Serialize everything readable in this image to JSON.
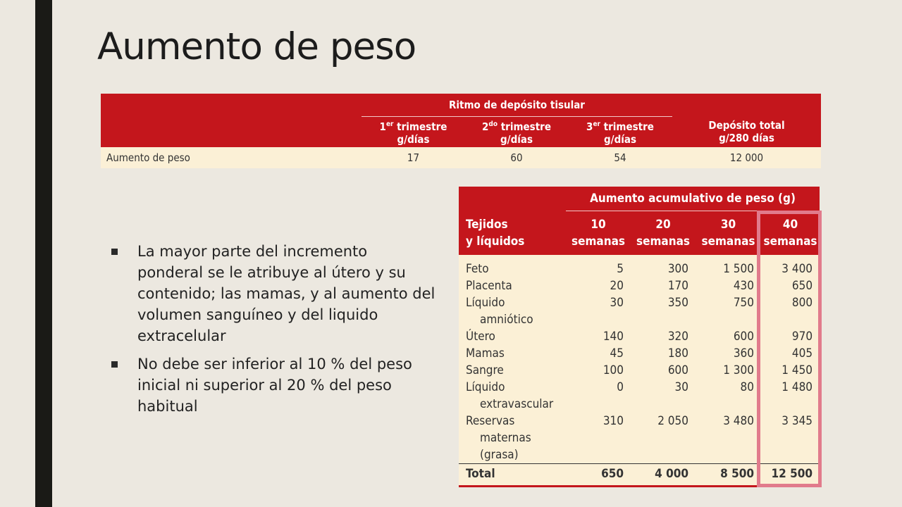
{
  "slide": {
    "title": "Aumento de peso"
  },
  "rate_table": {
    "group_header": "Ritmo de depósito tisular",
    "columns": [
      {
        "ord": "1",
        "sup": "er",
        "label": " trimestre",
        "unit": "g/días"
      },
      {
        "ord": "2",
        "sup": "do",
        "label": " trimestre",
        "unit": "g/días"
      },
      {
        "ord": "3",
        "sup": "er",
        "label": " trimestre",
        "unit": "g/días"
      }
    ],
    "total_header_line1": "Depósito total",
    "total_header_line2": "g/280 días",
    "row": {
      "label": "Aumento de peso",
      "values": [
        "17",
        "60",
        "54",
        "12 000"
      ]
    }
  },
  "bullets": [
    "La mayor parte del incremento ponderal se le atribuye al útero y su contenido; las mamas, y al aumento del volumen sanguíneo y del liquido extracelular",
    "No debe ser inferior al 10 % del peso inicial ni superior al 20 % del peso habitual"
  ],
  "weight_table": {
    "group_header": "Aumento acumulativo de peso (g)",
    "tissue_header_line1": "Tejidos",
    "tissue_header_line2": "y líquidos",
    "columns": [
      {
        "num": "10",
        "unit": "semanas"
      },
      {
        "num": "20",
        "unit": "semanas"
      },
      {
        "num": "30",
        "unit": "semanas"
      },
      {
        "num": "40",
        "unit": "semanas"
      }
    ],
    "rows": [
      {
        "label": "Feto",
        "sub": [
          "",
          ""
        ],
        "values": [
          "5",
          "300",
          "1 500",
          "3 400"
        ]
      },
      {
        "label": "Placenta",
        "sub": [
          "",
          ""
        ],
        "values": [
          "20",
          "170",
          "430",
          "650"
        ]
      },
      {
        "label": "Líquido",
        "sub": [
          "amniótico",
          ""
        ],
        "values": [
          "30",
          "350",
          "750",
          "800"
        ]
      },
      {
        "label": "Útero",
        "sub": [
          "",
          ""
        ],
        "values": [
          "140",
          "320",
          "600",
          "970"
        ]
      },
      {
        "label": "Mamas",
        "sub": [
          "",
          ""
        ],
        "values": [
          "45",
          "180",
          "360",
          "405"
        ]
      },
      {
        "label": "Sangre",
        "sub": [
          "",
          ""
        ],
        "values": [
          "100",
          "600",
          "1 300",
          "1 450"
        ]
      },
      {
        "label": "Líquido",
        "sub": [
          "extravascular",
          ""
        ],
        "values": [
          "0",
          "30",
          "80",
          "1 480"
        ]
      },
      {
        "label": "Reservas",
        "sub": [
          "maternas",
          "(grasa)"
        ],
        "values": [
          "310",
          "2 050",
          "3 480",
          "3 345"
        ]
      }
    ],
    "total": {
      "label": "Total",
      "values": [
        "650",
        "4 000",
        "8 500",
        "12 500"
      ]
    }
  },
  "colors": {
    "header_red": "#c4161c",
    "row_cream": "#fbf0d6",
    "highlight_pink": "#e17b8c",
    "background": "#ece8e0",
    "left_bar": "#1a1a16"
  }
}
